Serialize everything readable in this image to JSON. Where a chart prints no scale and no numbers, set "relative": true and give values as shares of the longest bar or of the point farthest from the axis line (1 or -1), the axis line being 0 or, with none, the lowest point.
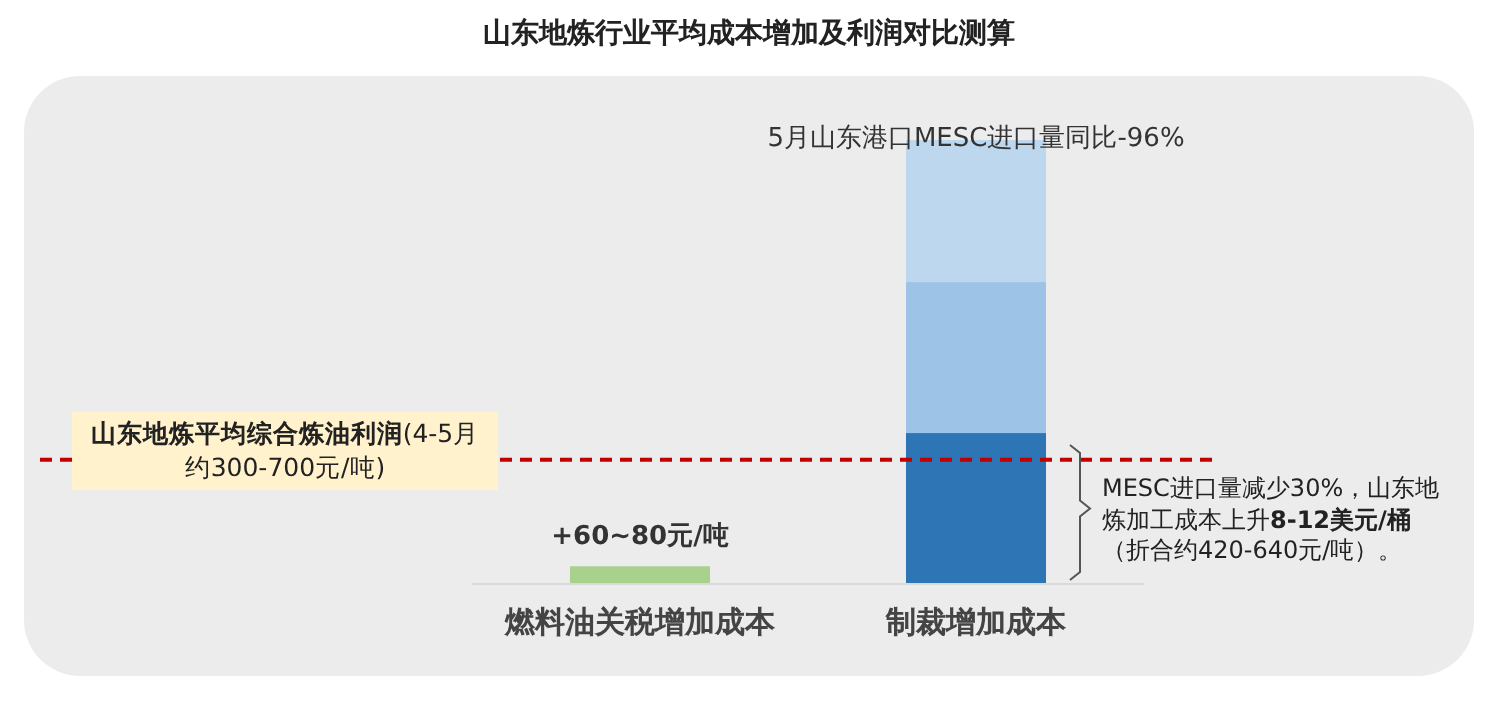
{
  "chart_data": {
    "type": "bar",
    "stacked": true,
    "relative": true,
    "title": "山东地炼行业平均成本增加及利润对比测算",
    "categories": [
      "燃料油关税增加成本",
      "制裁增加成本"
    ],
    "series": [
      {
        "colors": [
          "#a9d18e",
          "#2e75b6"
        ],
        "values": [
          0.04,
          0.34
        ]
      },
      {
        "color": "#9dc3e6",
        "values": [
          null,
          0.34
        ]
      },
      {
        "color": "#bdd7ee",
        "values": [
          null,
          0.32
        ]
      }
    ],
    "ref_lines": [
      {
        "axis": "y",
        "value": 0.28,
        "color": "#c00000",
        "line_style": "dashed",
        "label": "**山东地炼平均综合炼油利润**(4-5月约300-700元/吨)"
      }
    ],
    "annotations": [
      {
        "text": "5月山东港口MESC进口量同比-96%",
        "x": "制裁增加成本",
        "y": 1
      },
      {
        "text": "**+60~80元/吨**",
        "x": "燃料油关税增加成本",
        "y": 0.04
      },
      "MESC进口量减少30%，山东地炼加工成本上升**8-12美元/桶**（折合约420-640元/吨）。"
    ]
  }
}
